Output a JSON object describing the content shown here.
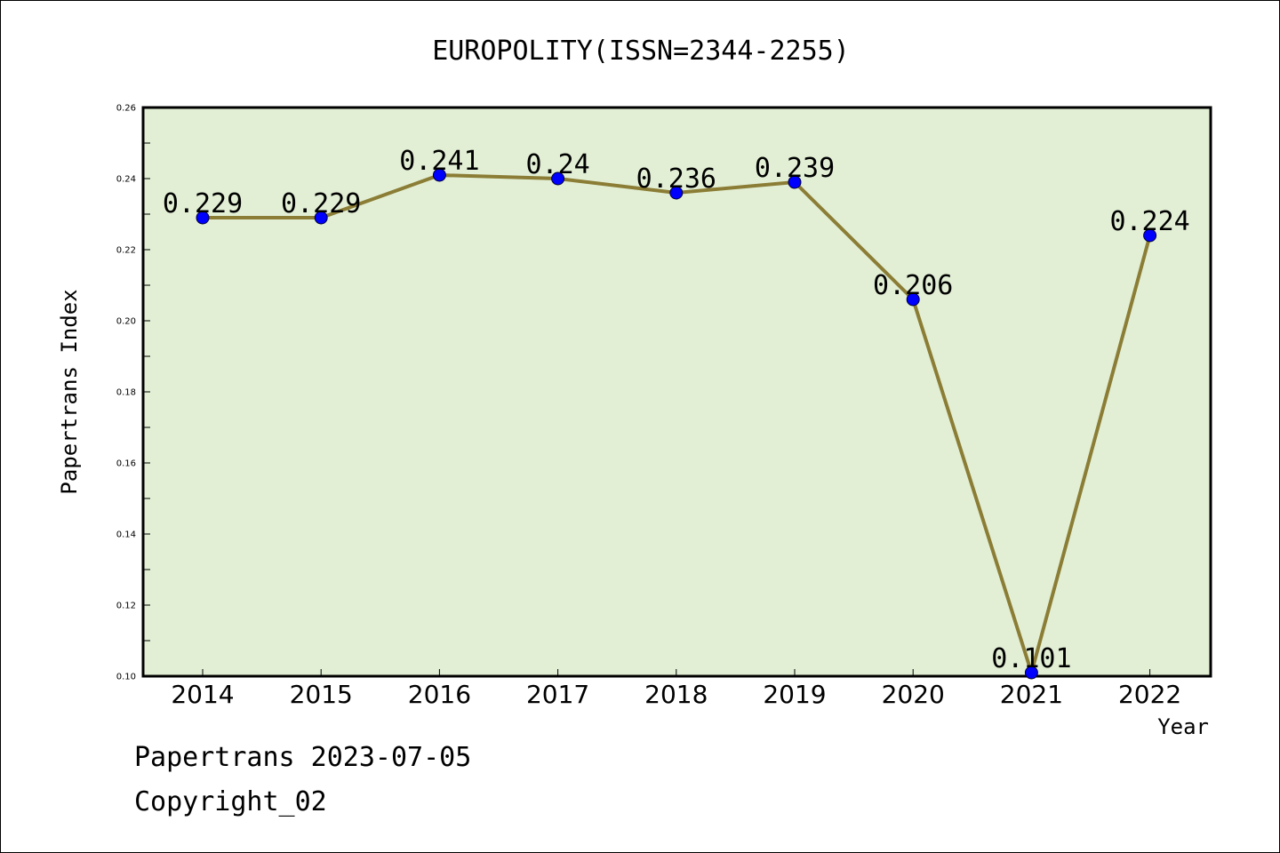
{
  "chart_data": {
    "type": "line",
    "title": "EUROPOLITY(ISSN=2344-2255)",
    "xlabel": "Year",
    "ylabel": "Papertrans Index",
    "x": [
      "2014",
      "2015",
      "2016",
      "2017",
      "2018",
      "2019",
      "2020",
      "2021",
      "2022"
    ],
    "series": [
      {
        "values": [
          0.229,
          0.229,
          0.241,
          0.24,
          0.236,
          0.239,
          0.206,
          0.101,
          0.224
        ],
        "data_labels": [
          "0.229",
          "0.229",
          "0.241",
          "0.24",
          "0.236",
          "0.239",
          "0.206",
          "0.101",
          "0.224"
        ]
      }
    ],
    "ylim": [
      0.1,
      0.26
    ],
    "yticks": [
      "0.10",
      "0.12",
      "0.14",
      "0.16",
      "0.18",
      "0.20",
      "0.22",
      "0.24",
      "0.26"
    ],
    "grid": false,
    "legend": "none"
  },
  "colors": {
    "plot_background": "#e2efd5",
    "line": "#8b7d35",
    "marker": "#0000ff"
  },
  "footer": {
    "line1": "Papertrans 2023-07-05",
    "line2": "Copyright_02"
  }
}
